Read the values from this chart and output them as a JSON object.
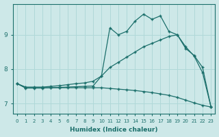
{
  "xlabel": "Humidex (Indice chaleur)",
  "background_color": "#cde8e8",
  "line_color": "#1a6e6a",
  "grid_color": "#b0d8d8",
  "xlim": [
    -0.5,
    23.5
  ],
  "ylim": [
    6.7,
    9.9
  ],
  "xticks": [
    0,
    1,
    2,
    3,
    4,
    5,
    6,
    7,
    8,
    9,
    10,
    11,
    12,
    13,
    14,
    15,
    16,
    17,
    18,
    19,
    20,
    21,
    22,
    23
  ],
  "yticks": [
    7,
    8,
    9
  ],
  "line1_x": [
    0,
    1,
    2,
    3,
    4,
    5,
    6,
    7,
    8,
    9,
    10,
    11,
    12,
    13,
    14,
    15,
    16,
    17,
    18,
    19,
    20,
    21,
    22,
    23
  ],
  "line1_y": [
    7.58,
    7.45,
    7.45,
    7.45,
    7.46,
    7.47,
    7.48,
    7.49,
    7.5,
    7.51,
    7.8,
    9.2,
    9.0,
    9.1,
    9.4,
    9.6,
    9.45,
    9.55,
    9.1,
    9.0,
    8.6,
    8.4,
    8.05,
    6.9
  ],
  "line2_x": [
    0,
    1,
    2,
    3,
    4,
    5,
    6,
    7,
    8,
    9,
    10,
    11,
    12,
    13,
    14,
    15,
    16,
    17,
    18,
    19,
    20,
    21,
    22,
    23
  ],
  "line2_y": [
    7.58,
    7.48,
    7.48,
    7.48,
    7.5,
    7.52,
    7.55,
    7.58,
    7.6,
    7.65,
    7.8,
    8.05,
    8.2,
    8.35,
    8.5,
    8.65,
    8.75,
    8.85,
    8.95,
    9.0,
    8.65,
    8.38,
    7.9,
    6.9
  ],
  "line3_x": [
    0,
    1,
    2,
    3,
    4,
    5,
    6,
    7,
    8,
    9,
    10,
    11,
    12,
    13,
    14,
    15,
    16,
    17,
    18,
    19,
    20,
    21,
    22,
    23
  ],
  "line3_y": [
    7.58,
    7.46,
    7.46,
    7.46,
    7.46,
    7.46,
    7.46,
    7.46,
    7.46,
    7.46,
    7.46,
    7.44,
    7.42,
    7.4,
    7.38,
    7.35,
    7.32,
    7.28,
    7.24,
    7.18,
    7.1,
    7.02,
    6.95,
    6.9
  ]
}
